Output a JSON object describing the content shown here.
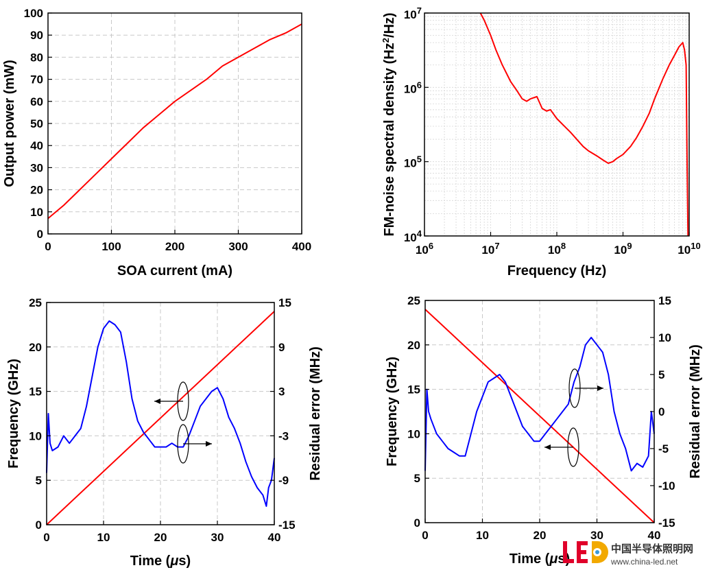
{
  "chart_data": [
    {
      "type": "line",
      "panel": "top-left",
      "xlabel": "SOA current (mA)",
      "ylabel": "Output  power (mW)",
      "xlim": [
        0,
        400
      ],
      "ylim": [
        0,
        100
      ],
      "xticks": [
        0,
        100,
        200,
        300,
        400
      ],
      "yticks": [
        0,
        10,
        20,
        30,
        40,
        50,
        60,
        70,
        80,
        90,
        100
      ],
      "grid": true,
      "series": [
        {
          "color": "#ff0000",
          "x": [
            0,
            25,
            50,
            75,
            100,
            125,
            150,
            175,
            200,
            225,
            250,
            275,
            300,
            325,
            350,
            375,
            400
          ],
          "y": [
            7,
            13,
            20,
            27,
            34,
            41,
            48,
            54,
            60,
            65,
            70,
            76,
            80,
            84,
            88,
            91,
            95
          ]
        }
      ]
    },
    {
      "type": "line",
      "panel": "top-right",
      "xlabel": "Frequency (Hz)",
      "ylabel": "FM-noise spectral density (Hz²/Hz)",
      "xscale": "log",
      "yscale": "log",
      "xlim": [
        1000000,
        10000000000
      ],
      "ylim": [
        10000,
        10000000
      ],
      "xticks_exp": [
        "6",
        "7",
        "8",
        "9",
        "10"
      ],
      "yticks_exp": [
        "4",
        "5",
        "6",
        "7"
      ],
      "grid": true,
      "series": [
        {
          "color": "#ff0000",
          "x": [
            7000000,
            8000000,
            10000000,
            12000000,
            15000000,
            20000000,
            25000000,
            30000000,
            35000000,
            40000000,
            50000000,
            60000000,
            70000000,
            80000000,
            100000000,
            130000000,
            160000000,
            200000000,
            250000000,
            300000000,
            400000000,
            500000000,
            600000000,
            700000000,
            800000000,
            1000000000,
            1300000000,
            1600000000,
            2000000000,
            2500000000,
            3000000000,
            4000000000,
            5000000000,
            6000000000,
            7000000000,
            8000000000,
            8500000000,
            9000000000,
            9300000000,
            9600000000
          ],
          "y": [
            10000000,
            8000000,
            5000000,
            3200000,
            2000000,
            1200000,
            900000,
            700000,
            650000,
            700000,
            750000,
            520000,
            480000,
            500000,
            380000,
            300000,
            250000,
            200000,
            160000,
            140000,
            120000,
            105000,
            95000,
            100000,
            110000,
            125000,
            160000,
            210000,
            300000,
            450000,
            700000,
            1300000,
            2000000,
            2700000,
            3500000,
            4000000,
            3200000,
            2000000,
            100000,
            10000
          ]
        }
      ]
    },
    {
      "type": "line",
      "panel": "bottom-left",
      "xlabel": "Time (μs)",
      "ylabel": "Frequency (GHz)",
      "ylabel_right": "Residual error (MHz)",
      "xlim": [
        0,
        40
      ],
      "ylim": [
        0,
        25
      ],
      "ylim_right": [
        -15,
        15
      ],
      "xticks": [
        0,
        10,
        20,
        30,
        40
      ],
      "yticks": [
        0,
        5,
        10,
        15,
        20,
        25
      ],
      "yticks_right": [
        -15,
        -9,
        -3,
        3,
        9,
        15
      ],
      "grid": true,
      "series": [
        {
          "axis": "left",
          "color": "#ff0000",
          "x": [
            0,
            40
          ],
          "y": [
            0,
            24
          ]
        },
        {
          "axis": "right",
          "color": "#0000ff",
          "x": [
            0,
            0.3,
            0.6,
            1,
            2,
            3,
            4,
            5,
            6,
            7,
            8,
            9,
            10,
            11,
            12,
            13,
            14,
            15,
            16,
            17,
            18,
            19,
            20,
            21,
            22,
            23,
            24,
            25,
            26,
            27,
            28,
            29,
            30,
            31,
            32,
            33,
            34,
            35,
            36,
            37,
            38,
            38.6,
            39,
            39.5,
            40
          ],
          "y": [
            -8,
            0,
            -4,
            -5,
            -4.5,
            -3,
            -4,
            -3,
            -2,
            1,
            5,
            9,
            11.5,
            12.5,
            12,
            11,
            7,
            2,
            -1,
            -2.5,
            -3.5,
            -4.5,
            -4.5,
            -4.5,
            -4,
            -4.5,
            -4.5,
            -3,
            -1,
            1,
            2,
            3,
            3.5,
            2,
            -0.5,
            -2,
            -4,
            -6.5,
            -8.5,
            -10,
            -11,
            -12.5,
            -10,
            -9,
            -6
          ]
        }
      ],
      "annotations": [
        "ellipse-arrow-left",
        "ellipse-arrow-right"
      ]
    },
    {
      "type": "line",
      "panel": "bottom-right",
      "xlabel": "Time (μs)",
      "ylabel": "Frequency (GHz)",
      "ylabel_right": "Residual error (MHz)",
      "xlim": [
        0,
        40
      ],
      "ylim": [
        0,
        25
      ],
      "ylim_right": [
        -15,
        15
      ],
      "xticks": [
        0,
        10,
        20,
        30,
        40
      ],
      "yticks": [
        0,
        5,
        10,
        15,
        20,
        25
      ],
      "yticks_right": [
        -15,
        -10,
        -5,
        0,
        5,
        10,
        15
      ],
      "grid": true,
      "series": [
        {
          "axis": "left",
          "color": "#ff0000",
          "x": [
            0,
            40
          ],
          "y": [
            24,
            0
          ]
        },
        {
          "axis": "right",
          "color": "#0000ff",
          "x": [
            0,
            0.3,
            0.6,
            1,
            2,
            3,
            4,
            5,
            6,
            7,
            8,
            9,
            10,
            11,
            12,
            13,
            14,
            15,
            16,
            17,
            18,
            19,
            20,
            21,
            22,
            23,
            24,
            25,
            26,
            27,
            28,
            29,
            30,
            31,
            32,
            33,
            34,
            35,
            36,
            37,
            38,
            39,
            39.5,
            40
          ],
          "y": [
            -8,
            3,
            0,
            -1,
            -3,
            -4,
            -5,
            -5.5,
            -6,
            -6,
            -3,
            0,
            2,
            4,
            4.5,
            5,
            4,
            2,
            0,
            -2,
            -3,
            -4,
            -4,
            -3,
            -2,
            -1,
            0,
            1,
            4,
            6,
            9,
            10,
            9,
            8,
            5,
            0,
            -3,
            -5,
            -8,
            -7,
            -7.5,
            -6,
            0,
            -3
          ]
        }
      ],
      "annotations": [
        "ellipse-arrow-right",
        "ellipse-arrow-left"
      ]
    }
  ],
  "watermark": {
    "logo_text": "LED",
    "site_name": "中国半导体照明网",
    "url": "www.china-led.net"
  }
}
